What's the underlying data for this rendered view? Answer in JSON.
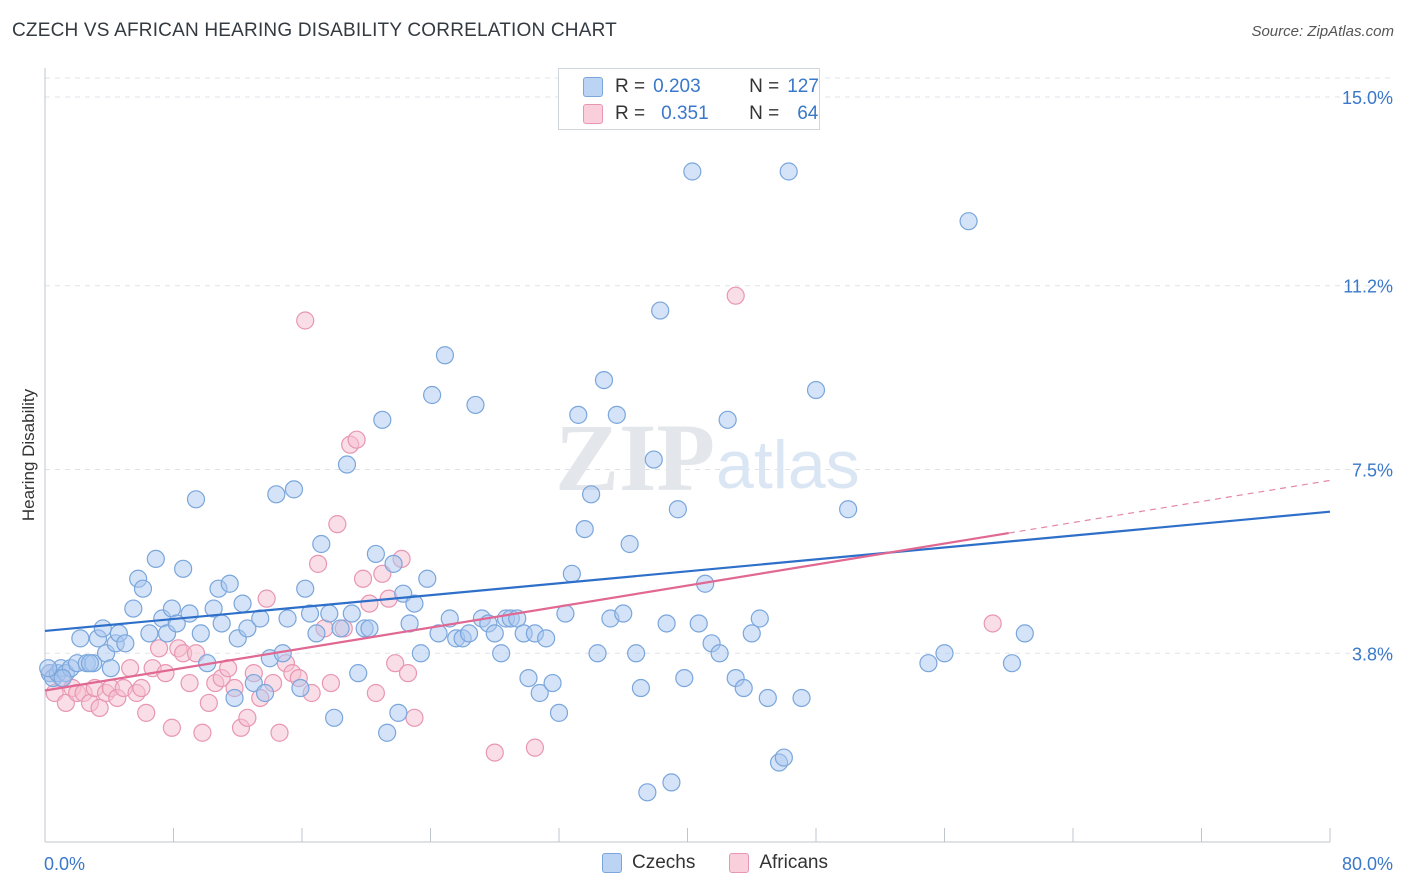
{
  "title": "CZECH VS AFRICAN HEARING DISABILITY CORRELATION CHART",
  "source": "Source: ZipAtlas.com",
  "watermark": {
    "zip": "ZIP",
    "atlas": "atlas"
  },
  "colors": {
    "blue_fill": "#a9c8ef",
    "blue_stroke": "#7aa6dc",
    "blue_line": "#2e6fc9",
    "pink_fill": "#f5bdd0",
    "pink_stroke": "#e896b2",
    "pink_line": "#e06892",
    "axis_text": "#3a78c9"
  },
  "stat_legend": {
    "rows": [
      {
        "r_label": "R =",
        "r_value": "0.203",
        "n_label": "N =",
        "n_value": "127"
      },
      {
        "r_label": "R =",
        "r_value": "0.351",
        "n_label": "N =",
        "n_value": "64"
      }
    ]
  },
  "bottom_legend": {
    "items": [
      "Czechs",
      "Africans"
    ]
  },
  "chart_data": {
    "type": "scatter",
    "title": "CZECH VS AFRICAN HEARING DISABILITY CORRELATION CHART",
    "xlabel": "",
    "ylabel": "Hearing Disability",
    "xlim": [
      0,
      80
    ],
    "ylim": [
      0,
      15.5
    ],
    "x_tick_labels": [
      "0.0%",
      "80.0%"
    ],
    "y_ticks": [
      3.8,
      7.5,
      11.2,
      15.0
    ],
    "y_tick_labels": [
      "3.8%",
      "7.5%",
      "11.2%",
      "15.0%"
    ],
    "grid": true,
    "legend": "top-center",
    "series": [
      {
        "name": "Czechs",
        "R": 0.203,
        "N": 127,
        "trend": {
          "x": [
            0,
            80
          ],
          "y": [
            4.25,
            6.65
          ]
        },
        "points": [
          [
            0.3,
            3.4
          ],
          [
            0.5,
            3.3
          ],
          [
            0.8,
            3.4
          ],
          [
            1.0,
            3.5
          ],
          [
            1.3,
            3.4
          ],
          [
            1.6,
            3.5
          ],
          [
            2.0,
            3.6
          ],
          [
            2.2,
            4.1
          ],
          [
            2.6,
            3.6
          ],
          [
            3.0,
            3.6
          ],
          [
            3.3,
            4.1
          ],
          [
            3.6,
            4.3
          ],
          [
            3.8,
            3.8
          ],
          [
            4.1,
            3.5
          ],
          [
            4.4,
            4.0
          ],
          [
            4.6,
            4.2
          ],
          [
            5.0,
            4.0
          ],
          [
            5.5,
            4.7
          ],
          [
            5.8,
            5.3
          ],
          [
            6.1,
            5.1
          ],
          [
            6.5,
            4.2
          ],
          [
            6.9,
            5.7
          ],
          [
            7.3,
            4.5
          ],
          [
            7.6,
            4.2
          ],
          [
            7.9,
            4.7
          ],
          [
            8.2,
            4.4
          ],
          [
            8.6,
            5.5
          ],
          [
            9.0,
            4.6
          ],
          [
            9.4,
            6.9
          ],
          [
            9.7,
            4.2
          ],
          [
            10.1,
            3.6
          ],
          [
            10.5,
            4.7
          ],
          [
            10.8,
            5.1
          ],
          [
            11.0,
            4.4
          ],
          [
            11.5,
            5.2
          ],
          [
            11.8,
            2.9
          ],
          [
            12.0,
            4.1
          ],
          [
            12.3,
            4.8
          ],
          [
            12.6,
            4.3
          ],
          [
            13.0,
            3.2
          ],
          [
            13.4,
            4.5
          ],
          [
            13.7,
            3.0
          ],
          [
            14.0,
            3.7
          ],
          [
            14.4,
            7.0
          ],
          [
            14.8,
            3.8
          ],
          [
            15.1,
            4.5
          ],
          [
            15.5,
            7.1
          ],
          [
            15.9,
            3.1
          ],
          [
            16.2,
            5.1
          ],
          [
            16.5,
            4.6
          ],
          [
            16.9,
            4.2
          ],
          [
            17.2,
            6.0
          ],
          [
            17.7,
            4.6
          ],
          [
            18.0,
            2.5
          ],
          [
            18.4,
            4.3
          ],
          [
            18.8,
            7.6
          ],
          [
            19.1,
            4.6
          ],
          [
            19.5,
            3.4
          ],
          [
            19.9,
            4.3
          ],
          [
            20.2,
            4.3
          ],
          [
            20.6,
            5.8
          ],
          [
            21.0,
            8.5
          ],
          [
            21.3,
            2.2
          ],
          [
            21.7,
            5.6
          ],
          [
            22.0,
            2.6
          ],
          [
            22.3,
            5.0
          ],
          [
            22.7,
            4.4
          ],
          [
            23.0,
            4.8
          ],
          [
            23.4,
            3.8
          ],
          [
            23.8,
            5.3
          ],
          [
            24.1,
            9.0
          ],
          [
            24.5,
            4.2
          ],
          [
            24.9,
            9.8
          ],
          [
            25.2,
            4.5
          ],
          [
            25.6,
            4.1
          ],
          [
            26.0,
            4.1
          ],
          [
            26.4,
            4.2
          ],
          [
            26.8,
            8.8
          ],
          [
            27.2,
            4.5
          ],
          [
            27.6,
            4.4
          ],
          [
            28.0,
            4.2
          ],
          [
            28.4,
            3.8
          ],
          [
            28.7,
            4.5
          ],
          [
            29.0,
            4.5
          ],
          [
            29.4,
            4.5
          ],
          [
            29.8,
            4.2
          ],
          [
            30.1,
            3.3
          ],
          [
            30.5,
            4.2
          ],
          [
            30.8,
            3.0
          ],
          [
            31.2,
            4.1
          ],
          [
            31.6,
            3.2
          ],
          [
            32.0,
            2.6
          ],
          [
            32.4,
            4.6
          ],
          [
            32.8,
            5.4
          ],
          [
            33.2,
            8.6
          ],
          [
            33.6,
            6.3
          ],
          [
            34.0,
            7.0
          ],
          [
            34.4,
            3.8
          ],
          [
            34.8,
            9.3
          ],
          [
            35.2,
            4.5
          ],
          [
            35.6,
            8.6
          ],
          [
            36.0,
            4.6
          ],
          [
            36.4,
            6.0
          ],
          [
            36.8,
            3.8
          ],
          [
            37.1,
            3.1
          ],
          [
            37.5,
            1.0
          ],
          [
            37.9,
            7.7
          ],
          [
            38.3,
            10.7
          ],
          [
            38.7,
            4.4
          ],
          [
            39.0,
            1.2
          ],
          [
            39.4,
            6.7
          ],
          [
            39.8,
            3.3
          ],
          [
            40.3,
            13.5
          ],
          [
            40.7,
            4.4
          ],
          [
            41.1,
            5.2
          ],
          [
            41.5,
            4.0
          ],
          [
            42.0,
            3.8
          ],
          [
            42.5,
            8.5
          ],
          [
            43.0,
            3.3
          ],
          [
            43.5,
            3.1
          ],
          [
            44.0,
            4.2
          ],
          [
            44.5,
            4.5
          ],
          [
            45.0,
            2.9
          ],
          [
            45.7,
            1.6
          ],
          [
            46.3,
            13.5
          ],
          [
            47.1,
            2.9
          ],
          [
            48.0,
            9.1
          ],
          [
            50.0,
            6.7
          ],
          [
            55.0,
            3.6
          ],
          [
            56.0,
            3.8
          ],
          [
            57.5,
            12.5
          ],
          [
            60.2,
            3.6
          ],
          [
            61.0,
            4.2
          ],
          [
            46.0,
            1.7
          ],
          [
            0.2,
            3.5
          ],
          [
            1.1,
            3.3
          ],
          [
            2.8,
            3.6
          ]
        ]
      },
      {
        "name": "Africans",
        "R": 0.351,
        "N": 64,
        "trend": {
          "x": [
            0,
            60
          ],
          "y": [
            3.05,
            6.22
          ]
        },
        "trend_dashed": {
          "x": [
            60,
            80
          ],
          "y": [
            6.22,
            7.28
          ]
        },
        "points": [
          [
            0.3,
            3.4
          ],
          [
            0.6,
            3.0
          ],
          [
            1.0,
            3.3
          ],
          [
            1.3,
            2.8
          ],
          [
            1.7,
            3.1
          ],
          [
            2.0,
            3.0
          ],
          [
            2.4,
            3.0
          ],
          [
            2.8,
            2.8
          ],
          [
            3.1,
            3.1
          ],
          [
            3.4,
            2.7
          ],
          [
            3.8,
            3.0
          ],
          [
            4.1,
            3.1
          ],
          [
            4.5,
            2.9
          ],
          [
            4.9,
            3.1
          ],
          [
            5.3,
            3.5
          ],
          [
            5.7,
            3.0
          ],
          [
            6.0,
            3.1
          ],
          [
            6.3,
            2.6
          ],
          [
            6.7,
            3.5
          ],
          [
            7.1,
            3.9
          ],
          [
            7.5,
            3.4
          ],
          [
            7.9,
            2.3
          ],
          [
            8.3,
            3.9
          ],
          [
            8.6,
            3.8
          ],
          [
            9.0,
            3.2
          ],
          [
            9.4,
            3.8
          ],
          [
            9.8,
            2.2
          ],
          [
            10.2,
            2.8
          ],
          [
            10.6,
            3.2
          ],
          [
            11.0,
            3.3
          ],
          [
            11.4,
            3.5
          ],
          [
            11.8,
            3.1
          ],
          [
            12.2,
            2.3
          ],
          [
            12.6,
            2.5
          ],
          [
            13.0,
            3.4
          ],
          [
            13.4,
            2.9
          ],
          [
            13.8,
            4.9
          ],
          [
            14.2,
            3.2
          ],
          [
            14.6,
            2.2
          ],
          [
            15.0,
            3.6
          ],
          [
            15.4,
            3.4
          ],
          [
            15.8,
            3.3
          ],
          [
            16.2,
            10.5
          ],
          [
            16.6,
            3.0
          ],
          [
            17.0,
            5.6
          ],
          [
            17.4,
            4.3
          ],
          [
            17.8,
            3.2
          ],
          [
            18.2,
            6.4
          ],
          [
            18.6,
            4.3
          ],
          [
            19.0,
            8.0
          ],
          [
            19.4,
            8.1
          ],
          [
            19.8,
            5.3
          ],
          [
            20.2,
            4.8
          ],
          [
            20.6,
            3.0
          ],
          [
            21.0,
            5.4
          ],
          [
            21.4,
            4.9
          ],
          [
            21.8,
            3.6
          ],
          [
            22.2,
            5.7
          ],
          [
            22.6,
            3.4
          ],
          [
            23.0,
            2.5
          ],
          [
            28.0,
            1.8
          ],
          [
            30.5,
            1.9
          ],
          [
            43.0,
            11.0
          ],
          [
            59.0,
            4.4
          ]
        ]
      }
    ]
  }
}
